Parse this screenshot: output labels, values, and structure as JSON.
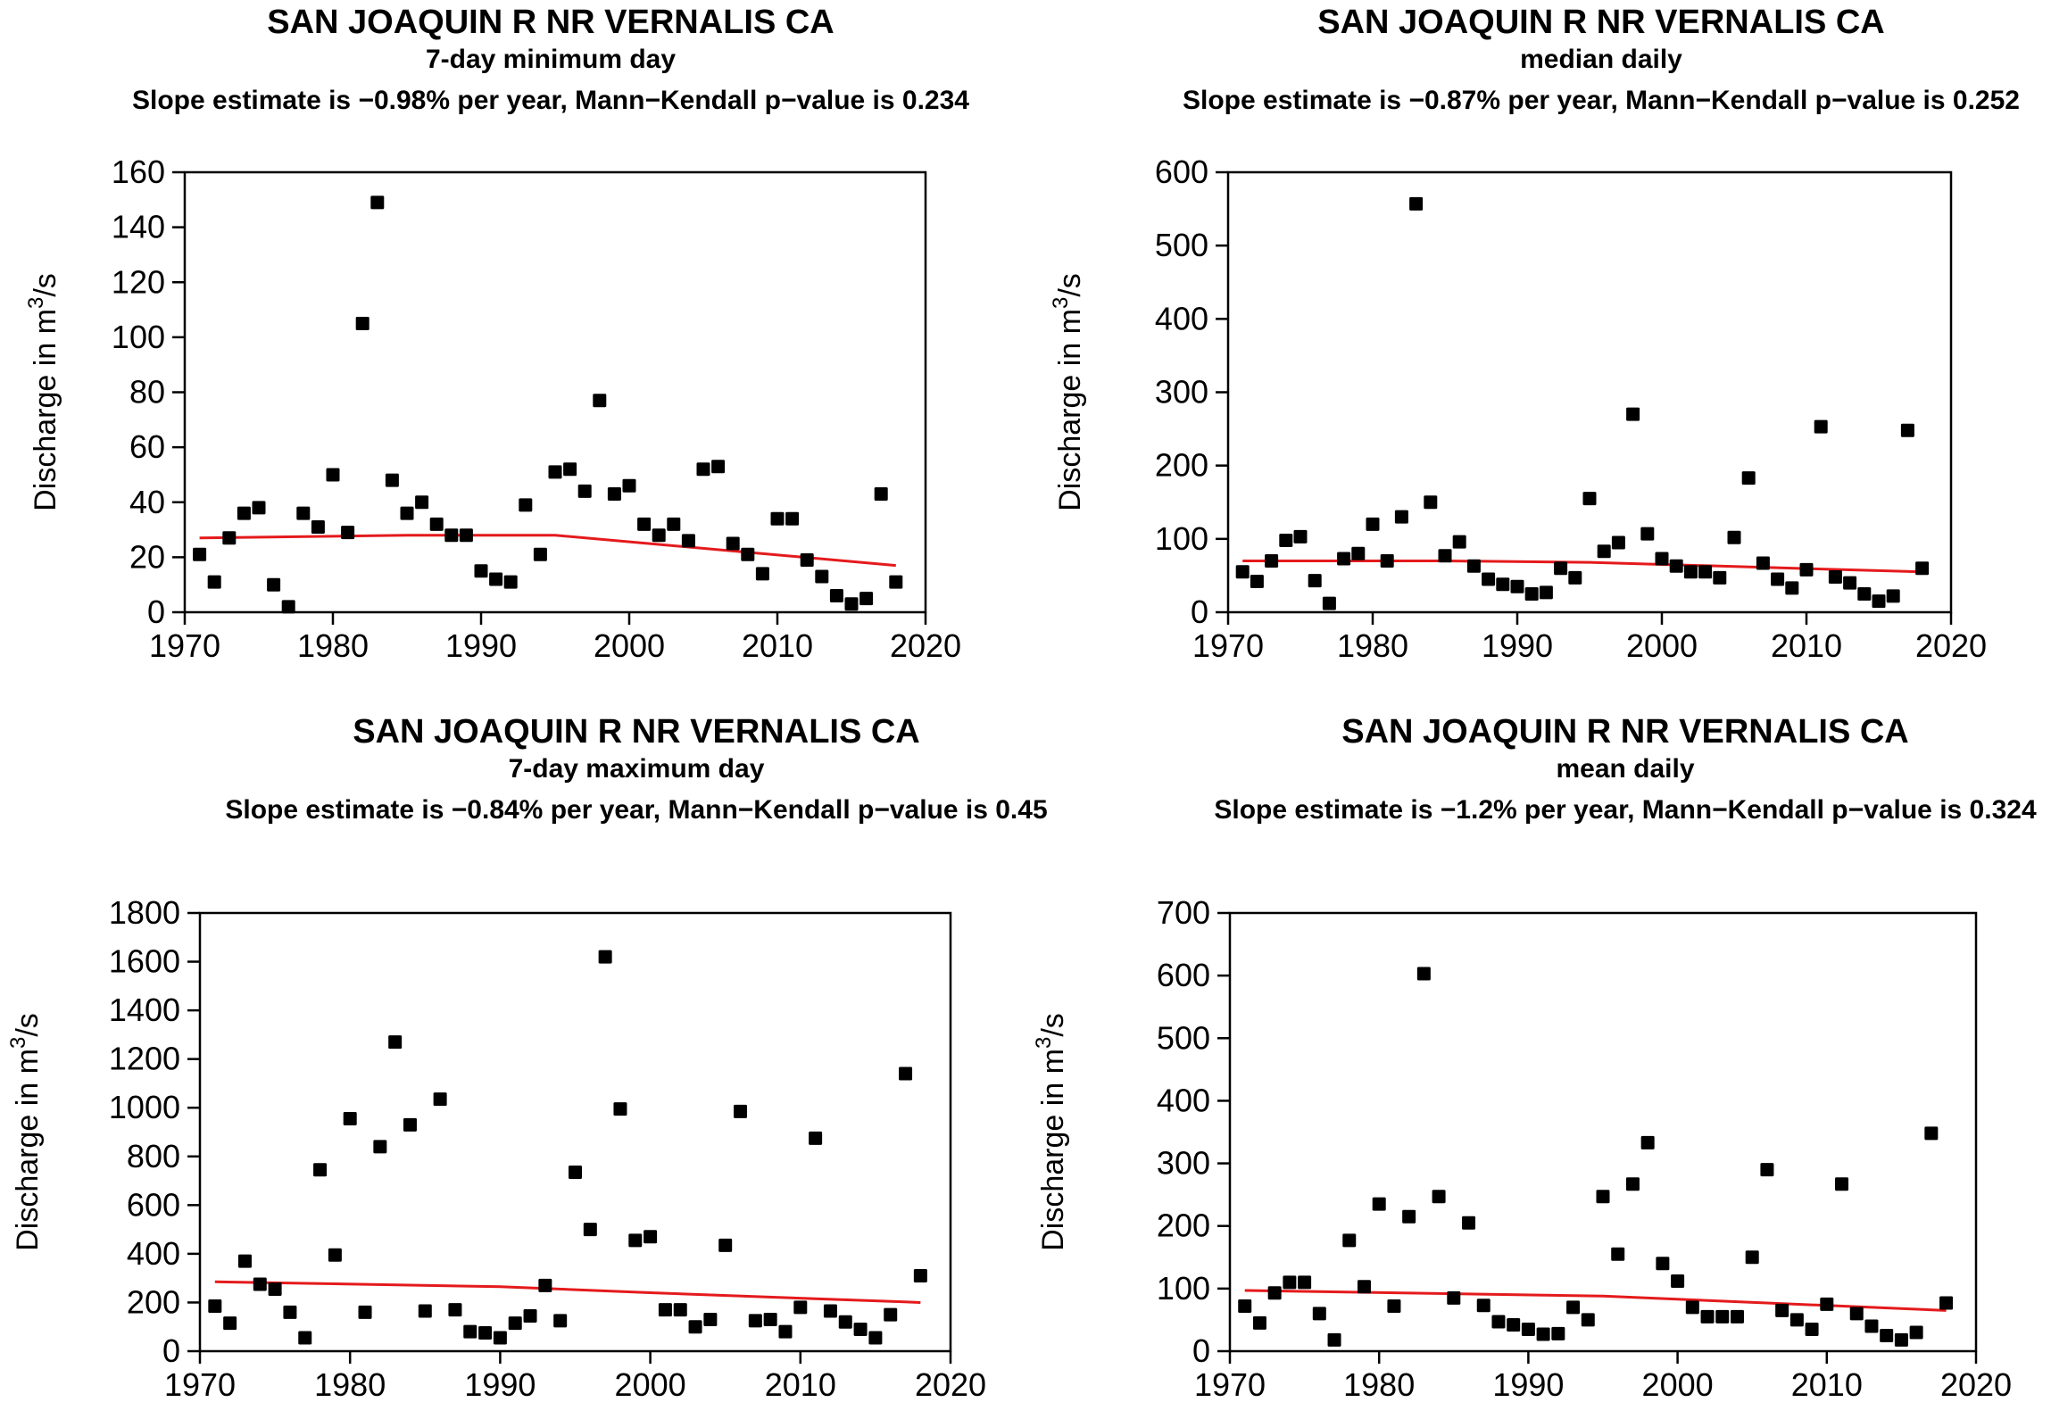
{
  "chart_data": [
    {
      "type": "scatter",
      "title": "SAN JOAQUIN R NR VERNALIS CA",
      "subtitle": "7-day minimum day",
      "annotation": "Slope estimate is −0.98% per year, Mann−Kendall p−value is 0.234",
      "ylabel_prefix": "Discharge in m",
      "ylabel_sup": "3",
      "ylabel_suffix": "/s",
      "xlim": [
        1970,
        2020
      ],
      "ylim": [
        0,
        160
      ],
      "xticks": [
        1970,
        1980,
        1990,
        2000,
        2010,
        2020
      ],
      "yticks": [
        0,
        20,
        40,
        60,
        80,
        100,
        120,
        140,
        160
      ],
      "grid": false,
      "point_color": "#000000",
      "trend_color": "#e41a1c",
      "points": {
        "x": [
          1971,
          1972,
          1973,
          1974,
          1975,
          1976,
          1977,
          1978,
          1979,
          1980,
          1981,
          1982,
          1983,
          1984,
          1985,
          1986,
          1987,
          1988,
          1989,
          1990,
          1991,
          1992,
          1993,
          1994,
          1995,
          1996,
          1997,
          1998,
          1999,
          2000,
          2001,
          2002,
          2003,
          2004,
          2005,
          2006,
          2007,
          2008,
          2009,
          2010,
          2011,
          2012,
          2013,
          2014,
          2015,
          2016,
          2017,
          2018
        ],
        "y": [
          21,
          11,
          27,
          36,
          38,
          10,
          2,
          36,
          31,
          50,
          29,
          105,
          149,
          48,
          36,
          40,
          32,
          28,
          28,
          15,
          12,
          11,
          39,
          21,
          51,
          52,
          44,
          77,
          43,
          46,
          32,
          28,
          32,
          26,
          52,
          53,
          25,
          21,
          14,
          34,
          34,
          19,
          13,
          6,
          3,
          5,
          43,
          11
        ]
      },
      "trend": {
        "x": [
          1971,
          1985,
          1995,
          2018
        ],
        "y": [
          27,
          28,
          28,
          17
        ]
      }
    },
    {
      "type": "scatter",
      "title": "SAN JOAQUIN R NR VERNALIS CA",
      "subtitle": "median daily",
      "annotation": "Slope estimate is −0.87% per year, Mann−Kendall p−value is 0.252",
      "ylabel_prefix": "Discharge in m",
      "ylabel_sup": "3",
      "ylabel_suffix": "/s",
      "xlim": [
        1970,
        2020
      ],
      "ylim": [
        0,
        600
      ],
      "xticks": [
        1970,
        1980,
        1990,
        2000,
        2010,
        2020
      ],
      "yticks": [
        0,
        100,
        200,
        300,
        400,
        500,
        600
      ],
      "grid": false,
      "point_color": "#000000",
      "trend_color": "#e41a1c",
      "points": {
        "x": [
          1971,
          1972,
          1973,
          1974,
          1975,
          1976,
          1977,
          1978,
          1979,
          1980,
          1981,
          1982,
          1983,
          1984,
          1985,
          1986,
          1987,
          1988,
          1989,
          1990,
          1991,
          1992,
          1993,
          1994,
          1995,
          1996,
          1997,
          1998,
          1999,
          2000,
          2001,
          2002,
          2003,
          2004,
          2005,
          2006,
          2007,
          2008,
          2009,
          2010,
          2011,
          2012,
          2013,
          2014,
          2015,
          2016,
          2017,
          2018
        ],
        "y": [
          55,
          42,
          70,
          98,
          103,
          43,
          12,
          73,
          80,
          120,
          70,
          130,
          557,
          150,
          77,
          96,
          63,
          45,
          38,
          35,
          25,
          27,
          60,
          47,
          155,
          83,
          95,
          270,
          107,
          73,
          63,
          55,
          55,
          47,
          102,
          183,
          67,
          45,
          33,
          58,
          253,
          48,
          40,
          25,
          15,
          22,
          248,
          60
        ]
      },
      "trend": {
        "x": [
          1971,
          1985,
          1995,
          2018
        ],
        "y": [
          70,
          70,
          68,
          55
        ]
      }
    },
    {
      "type": "scatter",
      "title": "SAN JOAQUIN R NR VERNALIS CA",
      "subtitle": "7-day maximum day",
      "annotation": "Slope estimate is −0.84% per year, Mann−Kendall p−value is 0.45",
      "ylabel_prefix": "Discharge in m",
      "ylabel_sup": "3",
      "ylabel_suffix": "/s",
      "xlim": [
        1970,
        2020
      ],
      "ylim": [
        0,
        1800
      ],
      "xticks": [
        1970,
        1980,
        1990,
        2000,
        2010,
        2020
      ],
      "yticks": [
        0,
        200,
        400,
        600,
        800,
        1000,
        1200,
        1400,
        1600,
        1800
      ],
      "grid": false,
      "point_color": "#000000",
      "trend_color": "#e41a1c",
      "points": {
        "x": [
          1971,
          1972,
          1973,
          1974,
          1975,
          1976,
          1977,
          1978,
          1979,
          1980,
          1981,
          1982,
          1983,
          1984,
          1985,
          1986,
          1987,
          1988,
          1989,
          1990,
          1991,
          1992,
          1993,
          1994,
          1995,
          1996,
          1997,
          1998,
          1999,
          2000,
          2001,
          2002,
          2003,
          2004,
          2005,
          2006,
          2007,
          2008,
          2009,
          2010,
          2011,
          2012,
          2013,
          2014,
          2015,
          2016,
          2017,
          2018
        ],
        "y": [
          185,
          115,
          370,
          275,
          255,
          160,
          55,
          745,
          395,
          955,
          160,
          840,
          1270,
          930,
          165,
          1035,
          170,
          80,
          75,
          55,
          115,
          145,
          270,
          125,
          735,
          500,
          1620,
          995,
          455,
          470,
          170,
          170,
          100,
          130,
          435,
          985,
          125,
          130,
          80,
          180,
          875,
          165,
          120,
          90,
          55,
          150,
          1140,
          310
        ]
      },
      "trend": {
        "x": [
          1971,
          1990,
          2000,
          2018
        ],
        "y": [
          285,
          265,
          240,
          200
        ]
      }
    },
    {
      "type": "scatter",
      "title": "SAN JOAQUIN R NR VERNALIS CA",
      "subtitle": "mean daily",
      "annotation": "Slope estimate is −1.2% per year, Mann−Kendall p−value is 0.324",
      "ylabel_prefix": "Discharge in m",
      "ylabel_sup": "3",
      "ylabel_suffix": "/s",
      "xlim": [
        1970,
        2020
      ],
      "ylim": [
        0,
        700
      ],
      "xticks": [
        1970,
        1980,
        1990,
        2000,
        2010,
        2020
      ],
      "yticks": [
        0,
        100,
        200,
        300,
        400,
        500,
        600,
        700
      ],
      "grid": false,
      "point_color": "#000000",
      "trend_color": "#e41a1c",
      "points": {
        "x": [
          1971,
          1972,
          1973,
          1974,
          1975,
          1976,
          1977,
          1978,
          1979,
          1980,
          1981,
          1982,
          1983,
          1984,
          1985,
          1986,
          1987,
          1988,
          1989,
          1990,
          1991,
          1992,
          1993,
          1994,
          1995,
          1996,
          1997,
          1998,
          1999,
          2000,
          2001,
          2002,
          2003,
          2004,
          2005,
          2006,
          2007,
          2008,
          2009,
          2010,
          2011,
          2012,
          2013,
          2014,
          2015,
          2016,
          2017,
          2018
        ],
        "y": [
          72,
          45,
          93,
          110,
          110,
          60,
          18,
          177,
          103,
          235,
          72,
          215,
          603,
          247,
          85,
          205,
          73,
          47,
          42,
          35,
          27,
          28,
          70,
          50,
          247,
          155,
          267,
          333,
          140,
          112,
          70,
          55,
          55,
          55,
          150,
          290,
          65,
          50,
          35,
          75,
          267,
          60,
          40,
          25,
          18,
          30,
          348,
          77
        ]
      },
      "trend": {
        "x": [
          1971,
          1995,
          2018
        ],
        "y": [
          97,
          88,
          65
        ]
      }
    }
  ]
}
